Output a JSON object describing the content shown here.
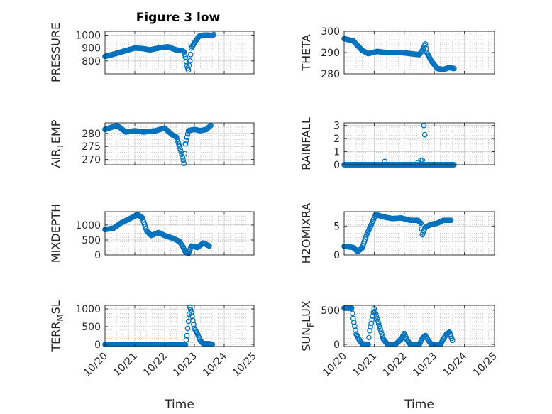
{
  "figure": {
    "title": "Figure 3 low"
  },
  "colors": {
    "marker": "#0072BD",
    "axis": "#262626",
    "grid": "#b0b0b0"
  },
  "chart_data": [
    {
      "type": "scatter",
      "title": "Figure 3 low",
      "xlabel": "",
      "ylabel": "PRESSURE",
      "xlim": [
        "10/20",
        "10/25"
      ],
      "xticks": [
        "10/20",
        "10/21",
        "10/22",
        "10/23",
        "10/24",
        "10/25"
      ],
      "ylim": [
        700,
        1030
      ],
      "yticks": [
        800,
        900,
        1000
      ],
      "grid": true,
      "anchors": [
        [
          0.0,
          835
        ],
        [
          0.25,
          850
        ],
        [
          0.7,
          880
        ],
        [
          1.0,
          900
        ],
        [
          1.3,
          895
        ],
        [
          1.5,
          885
        ],
        [
          1.8,
          900
        ],
        [
          2.1,
          910
        ],
        [
          2.4,
          885
        ],
        [
          2.6,
          880
        ],
        [
          2.65,
          870
        ],
        [
          2.7,
          830
        ],
        [
          2.75,
          760
        ],
        [
          2.8,
          730
        ],
        [
          2.85,
          800
        ],
        [
          2.9,
          900
        ],
        [
          3.0,
          940
        ],
        [
          3.15,
          990
        ],
        [
          3.3,
          1000
        ],
        [
          3.5,
          1000
        ],
        [
          3.6,
          995
        ],
        [
          3.65,
          1005
        ]
      ]
    },
    {
      "type": "scatter",
      "xlabel": "",
      "ylabel": "THETA",
      "xlim": [
        "10/20",
        "10/25"
      ],
      "xticks": [
        "10/20",
        "10/21",
        "10/22",
        "10/23",
        "10/24",
        "10/25"
      ],
      "ylim": [
        280,
        300
      ],
      "yticks": [
        280,
        290,
        300
      ],
      "grid": true,
      "anchors": [
        [
          0.0,
          296.5
        ],
        [
          0.3,
          295.5
        ],
        [
          0.6,
          291
        ],
        [
          0.8,
          289.5
        ],
        [
          1.1,
          290.5
        ],
        [
          1.4,
          290
        ],
        [
          1.9,
          290
        ],
        [
          2.2,
          289.5
        ],
        [
          2.5,
          289
        ],
        [
          2.6,
          291
        ],
        [
          2.7,
          294
        ],
        [
          2.75,
          290
        ],
        [
          2.9,
          286
        ],
        [
          3.1,
          282.5
        ],
        [
          3.3,
          282
        ],
        [
          3.5,
          283
        ],
        [
          3.65,
          282.5
        ]
      ]
    },
    {
      "type": "scatter",
      "xlabel": "",
      "ylabel": "AIR_TEMP",
      "ylabel_main": "AIR",
      "ylabel_sub": "T",
      "ylabel_rest": "EMP",
      "xlim": [
        "10/20",
        "10/25"
      ],
      "xticks": [
        "10/20",
        "10/21",
        "10/22",
        "10/23",
        "10/24",
        "10/25"
      ],
      "ylim": [
        268,
        284
      ],
      "yticks": [
        270,
        275,
        280
      ],
      "grid": true,
      "anchors": [
        [
          0.0,
          281.5
        ],
        [
          0.4,
          283
        ],
        [
          0.7,
          280.5
        ],
        [
          1.0,
          281
        ],
        [
          1.3,
          280.5
        ],
        [
          1.7,
          281
        ],
        [
          2.0,
          282
        ],
        [
          2.25,
          279.5
        ],
        [
          2.4,
          278.5
        ],
        [
          2.5,
          275
        ],
        [
          2.6,
          271
        ],
        [
          2.65,
          268.5
        ],
        [
          2.7,
          276
        ],
        [
          2.8,
          281
        ],
        [
          3.0,
          281.5
        ],
        [
          3.2,
          281
        ],
        [
          3.4,
          281.5
        ],
        [
          3.55,
          283
        ]
      ]
    },
    {
      "type": "scatter",
      "xlabel": "",
      "ylabel": "RAINFALL",
      "xlim": [
        "10/20",
        "10/25"
      ],
      "xticks": [
        "10/20",
        "10/21",
        "10/22",
        "10/23",
        "10/24",
        "10/25"
      ],
      "ylim": [
        0,
        3.2
      ],
      "yticks": [
        0,
        1,
        2,
        3
      ],
      "grid": true,
      "anchors": [
        [
          0.0,
          0
        ],
        [
          2.6,
          0
        ],
        [
          3.65,
          0
        ]
      ],
      "extra": [
        [
          1.35,
          0.25
        ],
        [
          2.45,
          0.15
        ],
        [
          2.55,
          0.35
        ],
        [
          2.6,
          0.35
        ],
        [
          2.65,
          3.0
        ],
        [
          2.68,
          2.3
        ]
      ]
    },
    {
      "type": "scatter",
      "xlabel": "",
      "ylabel": "MIXDEPTH",
      "xlim": [
        "10/20",
        "10/25"
      ],
      "xticks": [
        "10/20",
        "10/21",
        "10/22",
        "10/23",
        "10/24",
        "10/25"
      ],
      "ylim": [
        0,
        1450
      ],
      "yticks": [
        0,
        500,
        1000
      ],
      "grid": true,
      "anchors": [
        [
          0.0,
          850
        ],
        [
          0.3,
          900
        ],
        [
          0.5,
          1050
        ],
        [
          0.8,
          1200
        ],
        [
          1.1,
          1350
        ],
        [
          1.25,
          1250
        ],
        [
          1.4,
          800
        ],
        [
          1.55,
          650
        ],
        [
          1.8,
          750
        ],
        [
          2.0,
          650
        ],
        [
          2.3,
          550
        ],
        [
          2.5,
          450
        ],
        [
          2.6,
          300
        ],
        [
          2.7,
          100
        ],
        [
          2.8,
          50
        ],
        [
          2.9,
          300
        ],
        [
          3.1,
          250
        ],
        [
          3.3,
          400
        ],
        [
          3.5,
          300
        ]
      ]
    },
    {
      "type": "scatter",
      "xlabel": "",
      "ylabel": "H2OMIXRA",
      "xlim": [
        "10/20",
        "10/25"
      ],
      "xticks": [
        "10/20",
        "10/21",
        "10/22",
        "10/23",
        "10/24",
        "10/25"
      ],
      "ylim": [
        0,
        7.5
      ],
      "yticks": [
        0,
        5
      ],
      "grid": true,
      "anchors": [
        [
          0.0,
          1.5
        ],
        [
          0.3,
          1.3
        ],
        [
          0.45,
          0.6
        ],
        [
          0.6,
          1.2
        ],
        [
          0.75,
          3.5
        ],
        [
          0.9,
          5.2
        ],
        [
          1.05,
          7.0
        ],
        [
          1.3,
          6.6
        ],
        [
          1.6,
          6.3
        ],
        [
          1.9,
          6.4
        ],
        [
          2.2,
          6.0
        ],
        [
          2.45,
          6.0
        ],
        [
          2.55,
          5.5
        ],
        [
          2.6,
          3.5
        ],
        [
          2.7,
          4.8
        ],
        [
          2.9,
          5.3
        ],
        [
          3.1,
          5.5
        ],
        [
          3.3,
          6.0
        ],
        [
          3.55,
          6.0
        ]
      ]
    },
    {
      "type": "scatter",
      "xlabel": "Time",
      "ylabel": "TERR_MSL",
      "ylabel_main": "TERR",
      "ylabel_sub": "M",
      "ylabel_rest": "SL",
      "xlim": [
        "10/20",
        "10/25"
      ],
      "xticks": [
        "10/20",
        "10/21",
        "10/22",
        "10/23",
        "10/24",
        "10/25"
      ],
      "ylim": [
        -60,
        1100
      ],
      "yticks": [
        0,
        500,
        1000
      ],
      "grid": true,
      "anchors": [
        [
          0.0,
          0
        ],
        [
          2.7,
          0
        ],
        [
          2.75,
          250
        ],
        [
          2.8,
          650
        ],
        [
          2.85,
          1050
        ],
        [
          2.9,
          900
        ],
        [
          3.0,
          450
        ],
        [
          3.1,
          300
        ],
        [
          3.2,
          100
        ],
        [
          3.3,
          20
        ],
        [
          3.5,
          20
        ],
        [
          3.6,
          0
        ]
      ]
    },
    {
      "type": "scatter",
      "xlabel": "Time",
      "ylabel": "SUN_FLUX",
      "ylabel_main": "SUN",
      "ylabel_sub": "F",
      "ylabel_rest": "LUX",
      "xlim": [
        "10/20",
        "10/25"
      ],
      "xticks": [
        "10/20",
        "10/21",
        "10/22",
        "10/23",
        "10/24",
        "10/25"
      ],
      "ylim": [
        -30,
        570
      ],
      "yticks": [
        0,
        500
      ],
      "grid": true,
      "anchors": [
        [
          0.0,
          530
        ],
        [
          0.25,
          530
        ],
        [
          0.3,
          380
        ],
        [
          0.4,
          150
        ],
        [
          0.5,
          70
        ],
        [
          0.6,
          10
        ],
        [
          0.8,
          0
        ],
        [
          0.85,
          200
        ],
        [
          1.0,
          520
        ],
        [
          1.15,
          300
        ],
        [
          1.3,
          80
        ],
        [
          1.45,
          0
        ],
        [
          1.7,
          0
        ],
        [
          1.9,
          80
        ],
        [
          2.0,
          160
        ],
        [
          2.1,
          60
        ],
        [
          2.2,
          0
        ],
        [
          2.5,
          0
        ],
        [
          2.6,
          90
        ],
        [
          2.7,
          130
        ],
        [
          2.8,
          60
        ],
        [
          2.9,
          0
        ],
        [
          3.2,
          0
        ],
        [
          3.3,
          80
        ],
        [
          3.4,
          150
        ],
        [
          3.5,
          180
        ],
        [
          3.6,
          60
        ]
      ]
    }
  ]
}
